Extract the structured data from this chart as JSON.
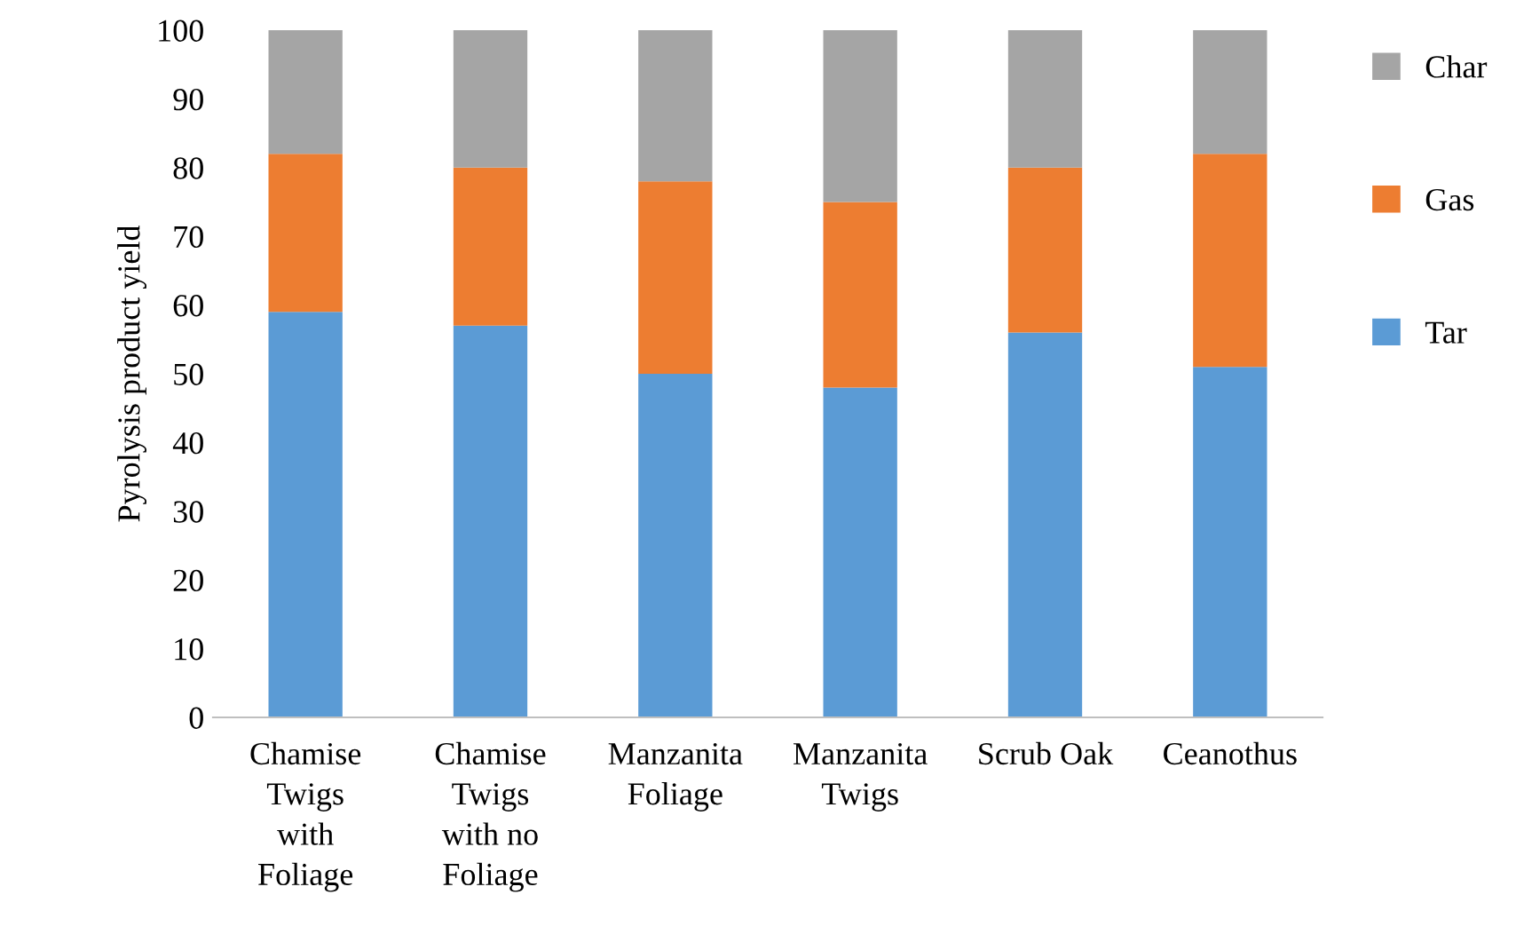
{
  "chart_data": {
    "type": "bar",
    "stacked": true,
    "ylabel": "Pyrolysis product yield",
    "categories": [
      "Chamise\nTwigs\nwith\nFoliage",
      "Chamise\nTwigs\nwith no\nFoliage",
      "Manzanita\nFoliage",
      "Manzanita\nTwigs",
      "Scrub Oak",
      "Ceanothus"
    ],
    "series": [
      {
        "name": "Tar",
        "color": "#5b9bd5",
        "values": [
          59,
          57,
          50,
          48,
          56,
          51
        ]
      },
      {
        "name": "Gas",
        "color": "#ed7d31",
        "values": [
          23,
          23,
          28,
          27,
          24,
          31
        ]
      },
      {
        "name": "Char",
        "color": "#a5a5a5",
        "values": [
          18,
          20,
          22,
          25,
          20,
          18
        ]
      }
    ],
    "ylim": [
      0,
      100
    ],
    "yticks": [
      0,
      10,
      20,
      30,
      40,
      50,
      60,
      70,
      80,
      90,
      100
    ],
    "grid": false,
    "legend": "right"
  }
}
